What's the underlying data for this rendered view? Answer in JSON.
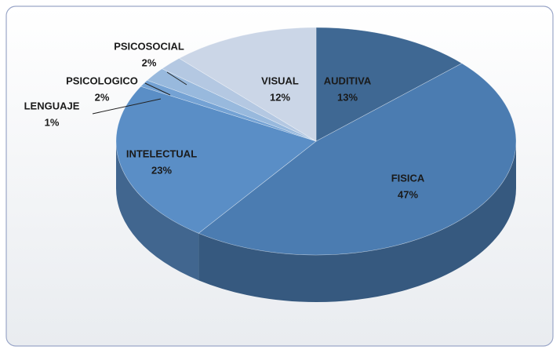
{
  "chart_data": {
    "type": "pie3d",
    "categories": [
      "AUDITIVA",
      "FISICA",
      "INTELECTUAL",
      "LENGUAJE",
      "PSICOLOGICO",
      "PSICOSOCIAL",
      "VISUAL"
    ],
    "values": [
      13,
      47,
      23,
      1,
      2,
      2,
      12
    ],
    "value_labels": [
      "13%",
      "47%",
      "23%",
      "1%",
      "2%",
      "2%",
      "12%"
    ],
    "colors": [
      "#3f6893",
      "#4b7cb1",
      "#5a8ec6",
      "#74a2d4",
      "#98b9dd",
      "#b4c8e2",
      "#cbd6e7"
    ]
  }
}
